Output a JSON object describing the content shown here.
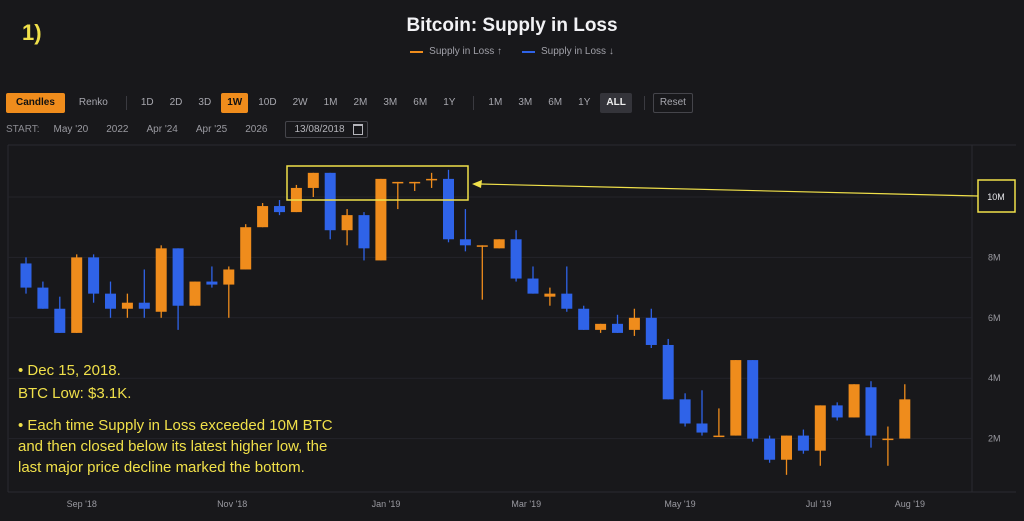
{
  "step_label": "1)",
  "toolbar": {
    "candles": "Candles",
    "renko": "Renko",
    "intervals": [
      "1D",
      "2D",
      "3D",
      "1W",
      "10D",
      "2W",
      "1M",
      "2M",
      "3M",
      "6M",
      "1Y"
    ],
    "active_interval": "1W",
    "ranges": [
      "1M",
      "3M",
      "6M",
      "1Y",
      "ALL"
    ],
    "active_range": "ALL",
    "reset": "Reset"
  },
  "start_row": {
    "label": "START:",
    "options": [
      "May '20",
      "2022",
      "Apr '24",
      "Apr '25",
      "2026"
    ],
    "date_value": "13/08/2018"
  },
  "colors": {
    "up": "#ef8c1c",
    "down": "#2f63e8",
    "annotation": "#f0e04a"
  },
  "annotation": {
    "line1": "• Dec 15, 2018.",
    "line2": "BTC Low: $3.1K.",
    "para": [
      "• Each time Supply in Loss exceeded 10M BTC",
      "and then closed below its latest higher low, the",
      "last major price decline marked the bottom."
    ],
    "highlight_label": "10M"
  },
  "chart_data": {
    "type": "candlestick",
    "title": "Bitcoin: Supply in Loss",
    "legend": [
      "Supply in Loss ↑",
      "Supply in Loss ↓"
    ],
    "y_ticks": [
      "2M",
      "4M",
      "6M",
      "8M",
      "10M"
    ],
    "y_tick_values": [
      2,
      4,
      6,
      8,
      10
    ],
    "x_ticks": [
      "Sep '18",
      "Nov '18",
      "Jan '19",
      "Mar '19",
      "May '19",
      "Jul '19",
      "Aug '19"
    ],
    "x_tick_index": [
      3.3,
      12.2,
      21.3,
      29.6,
      38.7,
      46.9,
      52.3
    ],
    "unit": "M BTC",
    "candles": [
      {
        "o": 7.8,
        "h": 8.0,
        "l": 6.8,
        "c": 7.0
      },
      {
        "o": 7.0,
        "h": 7.2,
        "l": 6.3,
        "c": 6.3
      },
      {
        "o": 6.3,
        "h": 6.7,
        "l": 5.5,
        "c": 5.5
      },
      {
        "o": 5.5,
        "h": 8.1,
        "l": 5.5,
        "c": 8.0
      },
      {
        "o": 8.0,
        "h": 8.1,
        "l": 6.5,
        "c": 6.8
      },
      {
        "o": 6.8,
        "h": 7.2,
        "l": 6.0,
        "c": 6.3
      },
      {
        "o": 6.3,
        "h": 6.8,
        "l": 6.0,
        "c": 6.5
      },
      {
        "o": 6.5,
        "h": 7.6,
        "l": 6.0,
        "c": 6.3
      },
      {
        "o": 6.2,
        "h": 8.4,
        "l": 6.0,
        "c": 8.3
      },
      {
        "o": 8.3,
        "h": 8.3,
        "l": 5.6,
        "c": 6.4
      },
      {
        "o": 6.4,
        "h": 7.2,
        "l": 6.4,
        "c": 7.2
      },
      {
        "o": 7.2,
        "h": 7.7,
        "l": 7.0,
        "c": 7.1
      },
      {
        "o": 7.1,
        "h": 7.7,
        "l": 6.0,
        "c": 7.6
      },
      {
        "o": 7.6,
        "h": 9.1,
        "l": 7.6,
        "c": 9.0
      },
      {
        "o": 9.0,
        "h": 9.8,
        "l": 9.0,
        "c": 9.7
      },
      {
        "o": 9.7,
        "h": 9.9,
        "l": 9.4,
        "c": 9.5
      },
      {
        "o": 9.5,
        "h": 10.4,
        "l": 9.5,
        "c": 10.3
      },
      {
        "o": 10.3,
        "h": 10.8,
        "l": 10.0,
        "c": 10.8
      },
      {
        "o": 10.8,
        "h": 10.8,
        "l": 8.6,
        "c": 8.9
      },
      {
        "o": 8.9,
        "h": 9.6,
        "l": 8.4,
        "c": 9.4
      },
      {
        "o": 9.4,
        "h": 9.5,
        "l": 7.9,
        "c": 8.3
      },
      {
        "o": 7.9,
        "h": 10.6,
        "l": 7.9,
        "c": 10.6
      },
      {
        "o": 10.5,
        "h": 10.5,
        "l": 9.6,
        "c": 10.5
      },
      {
        "o": 10.5,
        "h": 10.5,
        "l": 10.2,
        "c": 10.5
      },
      {
        "o": 10.6,
        "h": 10.8,
        "l": 10.3,
        "c": 10.6
      },
      {
        "o": 10.6,
        "h": 10.9,
        "l": 8.5,
        "c": 8.6
      },
      {
        "o": 8.6,
        "h": 9.6,
        "l": 8.2,
        "c": 8.4
      },
      {
        "o": 8.4,
        "h": 8.4,
        "l": 6.6,
        "c": 8.4
      },
      {
        "o": 8.3,
        "h": 8.6,
        "l": 8.3,
        "c": 8.6
      },
      {
        "o": 8.6,
        "h": 8.9,
        "l": 7.2,
        "c": 7.3
      },
      {
        "o": 7.3,
        "h": 7.7,
        "l": 6.8,
        "c": 6.8
      },
      {
        "o": 6.7,
        "h": 7.0,
        "l": 6.4,
        "c": 6.8
      },
      {
        "o": 6.8,
        "h": 7.7,
        "l": 6.2,
        "c": 6.3
      },
      {
        "o": 6.3,
        "h": 6.4,
        "l": 5.6,
        "c": 5.6
      },
      {
        "o": 5.6,
        "h": 5.8,
        "l": 5.5,
        "c": 5.8
      },
      {
        "o": 5.8,
        "h": 6.1,
        "l": 5.5,
        "c": 5.5
      },
      {
        "o": 5.6,
        "h": 6.3,
        "l": 5.4,
        "c": 6.0
      },
      {
        "o": 6.0,
        "h": 6.3,
        "l": 5.0,
        "c": 5.1
      },
      {
        "o": 5.1,
        "h": 5.3,
        "l": 3.3,
        "c": 3.3
      },
      {
        "o": 3.3,
        "h": 3.5,
        "l": 2.4,
        "c": 2.5
      },
      {
        "o": 2.5,
        "h": 3.6,
        "l": 2.1,
        "c": 2.2
      },
      {
        "o": 2.1,
        "h": 3.0,
        "l": 2.1,
        "c": 2.1
      },
      {
        "o": 2.1,
        "h": 4.6,
        "l": 2.1,
        "c": 4.6
      },
      {
        "o": 4.6,
        "h": 4.6,
        "l": 1.9,
        "c": 2.0
      },
      {
        "o": 2.0,
        "h": 2.1,
        "l": 1.2,
        "c": 1.3
      },
      {
        "o": 1.3,
        "h": 2.1,
        "l": 0.8,
        "c": 2.1
      },
      {
        "o": 2.1,
        "h": 2.3,
        "l": 1.5,
        "c": 1.6
      },
      {
        "o": 1.6,
        "h": 3.1,
        "l": 1.1,
        "c": 3.1
      },
      {
        "o": 3.1,
        "h": 3.2,
        "l": 2.6,
        "c": 2.7
      },
      {
        "o": 2.7,
        "h": 3.8,
        "l": 2.7,
        "c": 3.8
      },
      {
        "o": 3.7,
        "h": 3.9,
        "l": 1.7,
        "c": 2.1
      },
      {
        "o": 2.0,
        "h": 2.4,
        "l": 1.1,
        "c": 2.0
      },
      {
        "o": 2.0,
        "h": 3.8,
        "l": 2.0,
        "c": 3.3
      }
    ]
  }
}
